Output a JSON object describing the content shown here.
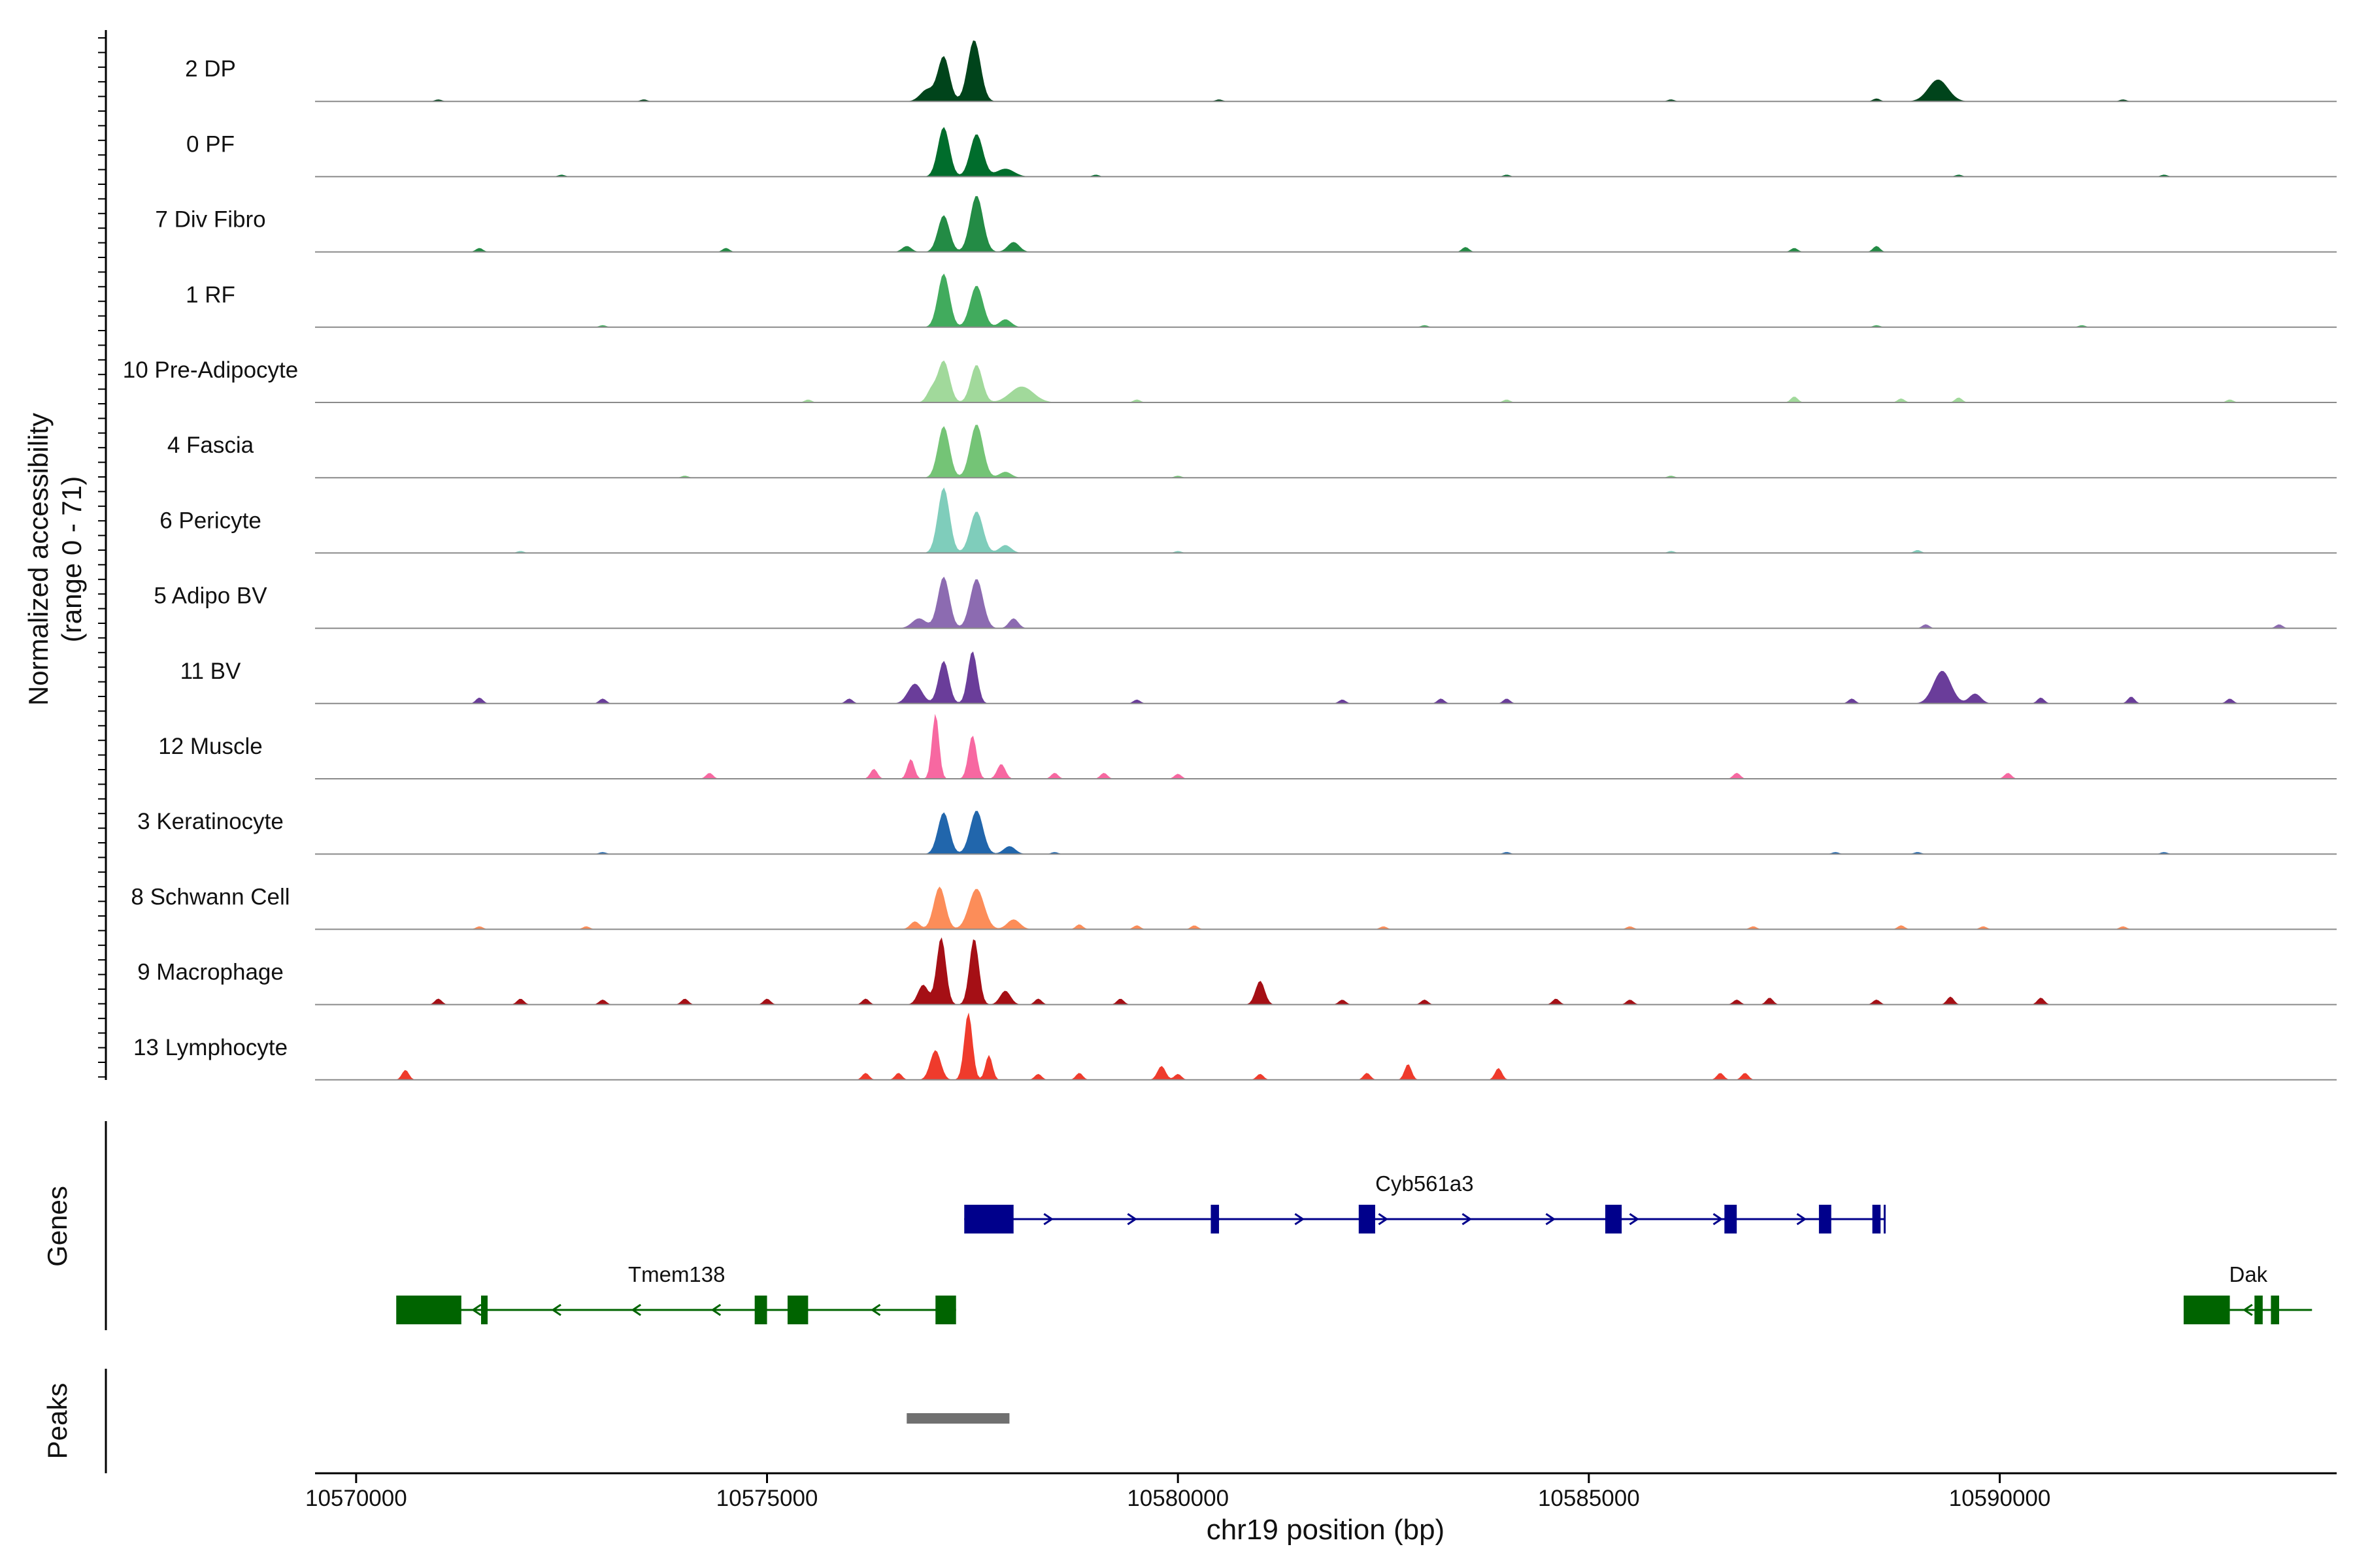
{
  "chart_data": {
    "type": "area",
    "title": "",
    "ylabel_line1": "Normalized accessibility",
    "ylabel_line2": "(range 0 - 71)",
    "ylim": [
      0,
      71
    ],
    "xlabel": "chr19 position (bp)",
    "xlim": [
      10569500,
      10594100
    ],
    "xticks": [
      10570000,
      10575000,
      10580000,
      10585000,
      10590000
    ],
    "xtick_labels": [
      "10570000",
      "10575000",
      "10580000",
      "10585000",
      "10590000"
    ],
    "tracks": [
      {
        "name": "2 DP",
        "color": "#00441b",
        "peaks": [
          [
            10577150,
            45,
            100
          ],
          [
            10577520,
            62,
            110
          ],
          [
            10576950,
            12,
            120
          ],
          [
            10589250,
            22,
            170
          ]
        ],
        "noise": [
          [
            10571000,
            2
          ],
          [
            10573500,
            2
          ],
          [
            10580500,
            2
          ],
          [
            10586000,
            2
          ],
          [
            10588500,
            3
          ],
          [
            10591500,
            2
          ]
        ]
      },
      {
        "name": "0 PF",
        "color": "#006d2c",
        "peaks": [
          [
            10577150,
            50,
            100
          ],
          [
            10577550,
            43,
            110
          ],
          [
            10577900,
            8,
            150
          ]
        ],
        "noise": [
          [
            10572500,
            2
          ],
          [
            10579000,
            2
          ],
          [
            10584000,
            2
          ],
          [
            10589500,
            2
          ],
          [
            10592000,
            2
          ]
        ]
      },
      {
        "name": "7 Div Fibro",
        "color": "#238b45",
        "peaks": [
          [
            10577150,
            37,
            100
          ],
          [
            10577550,
            57,
            110
          ],
          [
            10578000,
            10,
            100
          ],
          [
            10576700,
            6,
            80
          ]
        ],
        "noise": [
          [
            10571500,
            4
          ],
          [
            10574500,
            4
          ],
          [
            10583500,
            5
          ],
          [
            10587500,
            4
          ],
          [
            10588500,
            6
          ]
        ]
      },
      {
        "name": "1 RF",
        "color": "#41ab5d",
        "peaks": [
          [
            10577150,
            54,
            100
          ],
          [
            10577550,
            42,
            110
          ],
          [
            10577900,
            8,
            100
          ]
        ],
        "noise": [
          [
            10573000,
            2
          ],
          [
            10583000,
            2
          ],
          [
            10588500,
            2
          ],
          [
            10591000,
            2
          ]
        ]
      },
      {
        "name": "10 Pre-Adipocyte",
        "color": "#a1d99b",
        "peaks": [
          [
            10577150,
            42,
            100
          ],
          [
            10577550,
            38,
            100
          ],
          [
            10578100,
            16,
            200
          ],
          [
            10577000,
            12,
            80
          ]
        ],
        "noise": [
          [
            10575500,
            3
          ],
          [
            10579500,
            3
          ],
          [
            10584000,
            3
          ],
          [
            10587500,
            6
          ],
          [
            10588800,
            4
          ],
          [
            10589500,
            5
          ],
          [
            10592800,
            3
          ]
        ]
      },
      {
        "name": "4 Fascia",
        "color": "#74c476",
        "peaks": [
          [
            10577150,
            52,
            100
          ],
          [
            10577550,
            54,
            110
          ],
          [
            10577900,
            6,
            100
          ]
        ],
        "noise": [
          [
            10574000,
            2
          ],
          [
            10580000,
            2
          ],
          [
            10586000,
            2
          ]
        ]
      },
      {
        "name": "6 Pericyte",
        "color": "#7fcdbb",
        "peaks": [
          [
            10577150,
            66,
            100
          ],
          [
            10577550,
            42,
            110
          ],
          [
            10577900,
            8,
            100
          ]
        ],
        "noise": [
          [
            10572000,
            2
          ],
          [
            10580000,
            2
          ],
          [
            10586000,
            2
          ],
          [
            10589000,
            3
          ]
        ]
      },
      {
        "name": "5 Adipo BV",
        "color": "#8c6bb1",
        "peaks": [
          [
            10577150,
            52,
            100
          ],
          [
            10577550,
            50,
            110
          ],
          [
            10576850,
            10,
            120
          ],
          [
            10578000,
            10,
            80
          ]
        ],
        "noise": [
          [
            10589100,
            4
          ],
          [
            10593400,
            4
          ]
        ]
      },
      {
        "name": "11 BV",
        "color": "#6a3d9a",
        "peaks": [
          [
            10577150,
            43,
            90
          ],
          [
            10577500,
            53,
            80
          ],
          [
            10576800,
            20,
            120
          ],
          [
            10589300,
            33,
            150
          ],
          [
            10589700,
            10,
            100
          ]
        ],
        "noise": [
          [
            10571500,
            6
          ],
          [
            10573000,
            5
          ],
          [
            10576000,
            5
          ],
          [
            10579500,
            4
          ],
          [
            10582000,
            4
          ],
          [
            10583200,
            5
          ],
          [
            10584000,
            5
          ],
          [
            10588200,
            5
          ],
          [
            10590500,
            6
          ],
          [
            10591600,
            7
          ],
          [
            10592800,
            5
          ]
        ]
      },
      {
        "name": "12 Muscle",
        "color": "#f768a1",
        "peaks": [
          [
            10577050,
            66,
            60
          ],
          [
            10577500,
            44,
            70
          ],
          [
            10576750,
            20,
            60
          ],
          [
            10577850,
            15,
            70
          ]
        ],
        "noise": [
          [
            10574300,
            6
          ],
          [
            10576300,
            10
          ],
          [
            10578500,
            6
          ],
          [
            10579100,
            6
          ],
          [
            10580000,
            5
          ],
          [
            10586800,
            6
          ],
          [
            10590100,
            6
          ]
        ]
      },
      {
        "name": "3 Keratinocyte",
        "color": "#2166ac",
        "peaks": [
          [
            10577150,
            42,
            100
          ],
          [
            10577550,
            44,
            110
          ],
          [
            10577950,
            8,
            100
          ]
        ],
        "noise": [
          [
            10573000,
            2
          ],
          [
            10578500,
            2
          ],
          [
            10584000,
            2
          ],
          [
            10588000,
            2
          ],
          [
            10589000,
            2
          ],
          [
            10592000,
            2
          ]
        ]
      },
      {
        "name": "8 Schwann Cell",
        "color": "#fc8d59",
        "peaks": [
          [
            10577100,
            43,
            100
          ],
          [
            10577550,
            41,
            130
          ],
          [
            10578000,
            10,
            110
          ],
          [
            10576800,
            8,
            80
          ]
        ],
        "noise": [
          [
            10571500,
            3
          ],
          [
            10572800,
            3
          ],
          [
            10578800,
            5
          ],
          [
            10579500,
            4
          ],
          [
            10580200,
            4
          ],
          [
            10582500,
            3
          ],
          [
            10585500,
            3
          ],
          [
            10587000,
            3
          ],
          [
            10588800,
            4
          ],
          [
            10589800,
            3
          ],
          [
            10591500,
            3
          ]
        ]
      },
      {
        "name": "9 Macrophage",
        "color": "#a50f15",
        "peaks": [
          [
            10577120,
            68,
            80
          ],
          [
            10577520,
            67,
            80
          ],
          [
            10576900,
            20,
            90
          ],
          [
            10577900,
            14,
            90
          ],
          [
            10581000,
            24,
            80
          ]
        ],
        "noise": [
          [
            10571000,
            6
          ],
          [
            10572000,
            6
          ],
          [
            10573000,
            5
          ],
          [
            10574000,
            6
          ],
          [
            10575000,
            6
          ],
          [
            10576200,
            6
          ],
          [
            10578300,
            6
          ],
          [
            10579300,
            6
          ],
          [
            10582000,
            5
          ],
          [
            10583000,
            5
          ],
          [
            10584600,
            6
          ],
          [
            10585500,
            5
          ],
          [
            10586800,
            5
          ],
          [
            10587200,
            7
          ],
          [
            10588500,
            5
          ],
          [
            10589400,
            8
          ],
          [
            10590500,
            7
          ]
        ]
      },
      {
        "name": "13 Lymphocyte",
        "color": "#ef3b2c",
        "peaks": [
          [
            10577450,
            68,
            70
          ],
          [
            10577050,
            30,
            90
          ],
          [
            10577700,
            25,
            60
          ],
          [
            10579800,
            14,
            70
          ],
          [
            10582800,
            16,
            60
          ],
          [
            10583900,
            12,
            60
          ],
          [
            10570600,
            10,
            60
          ]
        ],
        "noise": [
          [
            10576200,
            7
          ],
          [
            10576600,
            7
          ],
          [
            10578300,
            6
          ],
          [
            10578800,
            7
          ],
          [
            10580000,
            6
          ],
          [
            10581000,
            6
          ],
          [
            10582300,
            7
          ],
          [
            10586600,
            7
          ],
          [
            10586900,
            7
          ]
        ]
      }
    ],
    "genes_label": "Genes",
    "genes": [
      {
        "name": "Cyb561a3",
        "color": "#00008b",
        "strand": "+",
        "start": 10577400,
        "end": 10588600,
        "exons": [
          [
            10577400,
            10578000
          ],
          [
            10580400,
            10580500
          ],
          [
            10582200,
            10582400
          ],
          [
            10585200,
            10585400
          ],
          [
            10586650,
            10586800
          ],
          [
            10587800,
            10587950
          ],
          [
            10588450,
            10588550
          ]
        ]
      },
      {
        "name": "Tmem138",
        "color": "#006400",
        "strand": "-",
        "start": 10570500,
        "end": 10577300,
        "exons": [
          [
            10570500,
            10571280
          ],
          [
            10571520,
            10571600
          ],
          [
            10574850,
            10575000
          ],
          [
            10575250,
            10575500
          ],
          [
            10577050,
            10577300
          ]
        ]
      },
      {
        "name": "Dak",
        "color": "#006400",
        "strand": "-",
        "start": 10592250,
        "end": 10593800,
        "exons": [
          [
            10592250,
            10592800
          ],
          [
            10593100,
            10593200
          ],
          [
            10593300,
            10593400
          ]
        ]
      }
    ],
    "peaks_label": "Peaks",
    "peak_regions": [
      [
        10576700,
        10577950
      ]
    ]
  }
}
